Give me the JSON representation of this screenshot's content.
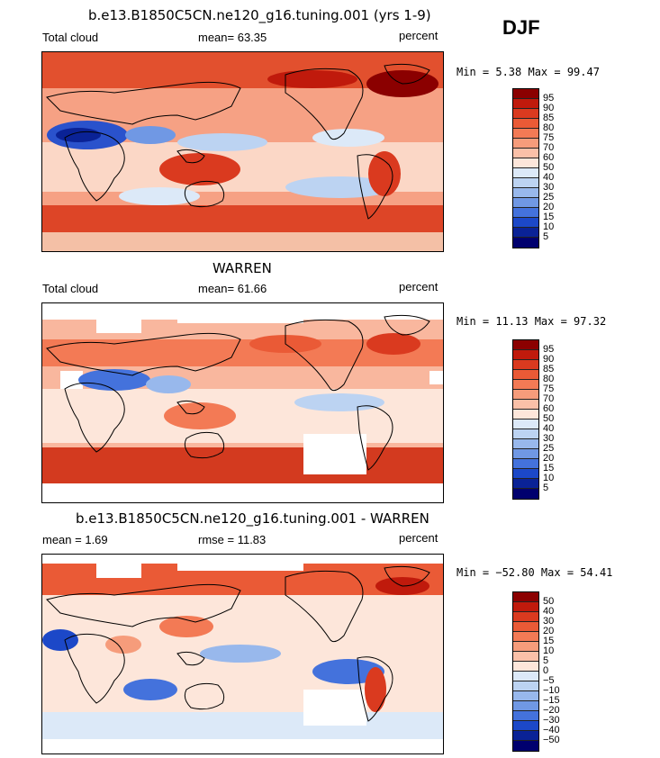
{
  "season": "DJF",
  "panels": [
    {
      "title": "b.e13.B1850C5CN.ne120_g16.tuning.001 (yrs 1-9)",
      "left_label": "Total cloud",
      "center_label": "mean=  63.35",
      "right_label": "percent",
      "minmax": "Min =   5.38 Max =  99.47",
      "levels": [
        "95",
        "90",
        "85",
        "80",
        "75",
        "70",
        "60",
        "50",
        "40",
        "30",
        "25",
        "20",
        "15",
        "10",
        "5"
      ],
      "colors": [
        "#8b0000",
        "#c01a0c",
        "#da3a1f",
        "#ea5a36",
        "#f37a55",
        "#f69c7b",
        "#fac0a8",
        "#fde6da",
        "#dce9f8",
        "#bcd3f2",
        "#98b8ec",
        "#7098e4",
        "#4472dc",
        "#1c48c8",
        "#0a2296",
        "#00006e"
      ]
    },
    {
      "title": "WARREN",
      "left_label": "Total cloud",
      "center_label": "mean=  61.66",
      "right_label": "percent",
      "minmax": "Min =  11.13 Max =  97.32",
      "levels": [
        "95",
        "90",
        "85",
        "80",
        "75",
        "70",
        "60",
        "50",
        "40",
        "30",
        "25",
        "20",
        "15",
        "10",
        "5"
      ],
      "colors": [
        "#8b0000",
        "#c01a0c",
        "#da3a1f",
        "#ea5a36",
        "#f37a55",
        "#f69c7b",
        "#fac0a8",
        "#fde6da",
        "#dce9f8",
        "#bcd3f2",
        "#98b8ec",
        "#7098e4",
        "#4472dc",
        "#1c48c8",
        "#0a2296",
        "#00006e"
      ]
    },
    {
      "title": "b.e13.B1850C5CN.ne120_g16.tuning.001 - WARREN",
      "left_label": "mean =   1.69",
      "center_label": "rmse =  11.83",
      "right_label": "percent",
      "minmax": "Min = −52.80 Max =  54.41",
      "levels": [
        "50",
        "40",
        "30",
        "20",
        "15",
        "10",
        "5",
        "0",
        "−5",
        "−10",
        "−15",
        "−20",
        "−30",
        "−40",
        "−50"
      ],
      "colors": [
        "#8b0000",
        "#c01a0c",
        "#da3a1f",
        "#ea5a36",
        "#f37a55",
        "#f69c7b",
        "#fac0a8",
        "#fde6da",
        "#dce9f8",
        "#bcd3f2",
        "#98b8ec",
        "#7098e4",
        "#4472dc",
        "#1c48c8",
        "#0a2296",
        "#00006e"
      ]
    }
  ]
}
